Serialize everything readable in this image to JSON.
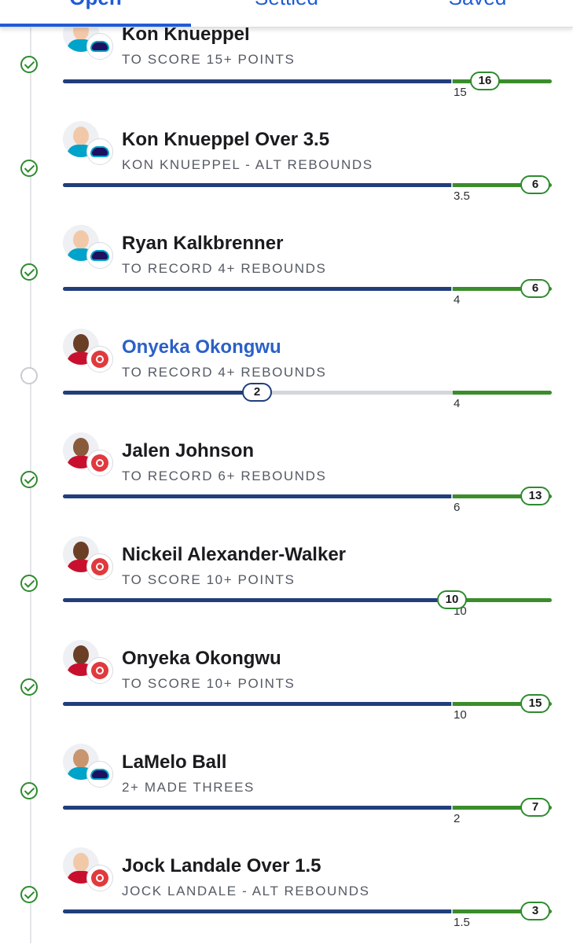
{
  "tabs": [
    {
      "label": "Open"
    },
    {
      "label": "Settled"
    },
    {
      "label": "Saved"
    }
  ],
  "colors": {
    "accent": "#1f5bd6",
    "progress_blue": "#213e7b",
    "progress_green": "#3b8d2b",
    "live_title": "#2b60c7"
  },
  "legs": [
    {
      "title": "Kon Knueppel",
      "subtitle": "TO SCORE 15+ POINTS",
      "target": "15",
      "current": "16",
      "team": "hornets",
      "status": "won",
      "progress": 1.0
    },
    {
      "title": "Kon Knueppel Over 3.5",
      "subtitle": "KON KNUEPPEL - ALT REBOUNDS",
      "target": "3.5",
      "current": "6",
      "team": "hornets",
      "status": "won",
      "progress": 1.0
    },
    {
      "title": "Ryan Kalkbrenner",
      "subtitle": "TO RECORD 4+ REBOUNDS",
      "target": "4",
      "current": "6",
      "team": "hornets",
      "status": "won",
      "progress": 1.0
    },
    {
      "title": "Onyeka Okongwu",
      "subtitle": "TO RECORD 4+ REBOUNDS",
      "target": "4",
      "current": "2",
      "team": "hawks",
      "status": "pending",
      "progress": 0.5
    },
    {
      "title": "Jalen Johnson",
      "subtitle": "TO RECORD 6+ REBOUNDS",
      "target": "6",
      "current": "13",
      "team": "hawks",
      "status": "won",
      "progress": 1.0
    },
    {
      "title": "Nickeil Alexander-Walker",
      "subtitle": "TO SCORE 10+ POINTS",
      "target": "10",
      "current": "10",
      "team": "hawks",
      "status": "won",
      "progress": 1.0
    },
    {
      "title": "Onyeka Okongwu",
      "subtitle": "TO SCORE 10+ POINTS",
      "target": "10",
      "current": "15",
      "team": "hawks",
      "status": "won",
      "progress": 1.0
    },
    {
      "title": "LaMelo Ball",
      "subtitle": "2+ MADE THREES",
      "target": "2",
      "current": "7",
      "team": "hornets",
      "status": "won",
      "progress": 1.0
    },
    {
      "title": "Jock Landale Over 1.5",
      "subtitle": "JOCK LANDALE - ALT REBOUNDS",
      "target": "1.5",
      "current": "3",
      "team": "hawks",
      "status": "won",
      "progress": 1.0
    }
  ]
}
